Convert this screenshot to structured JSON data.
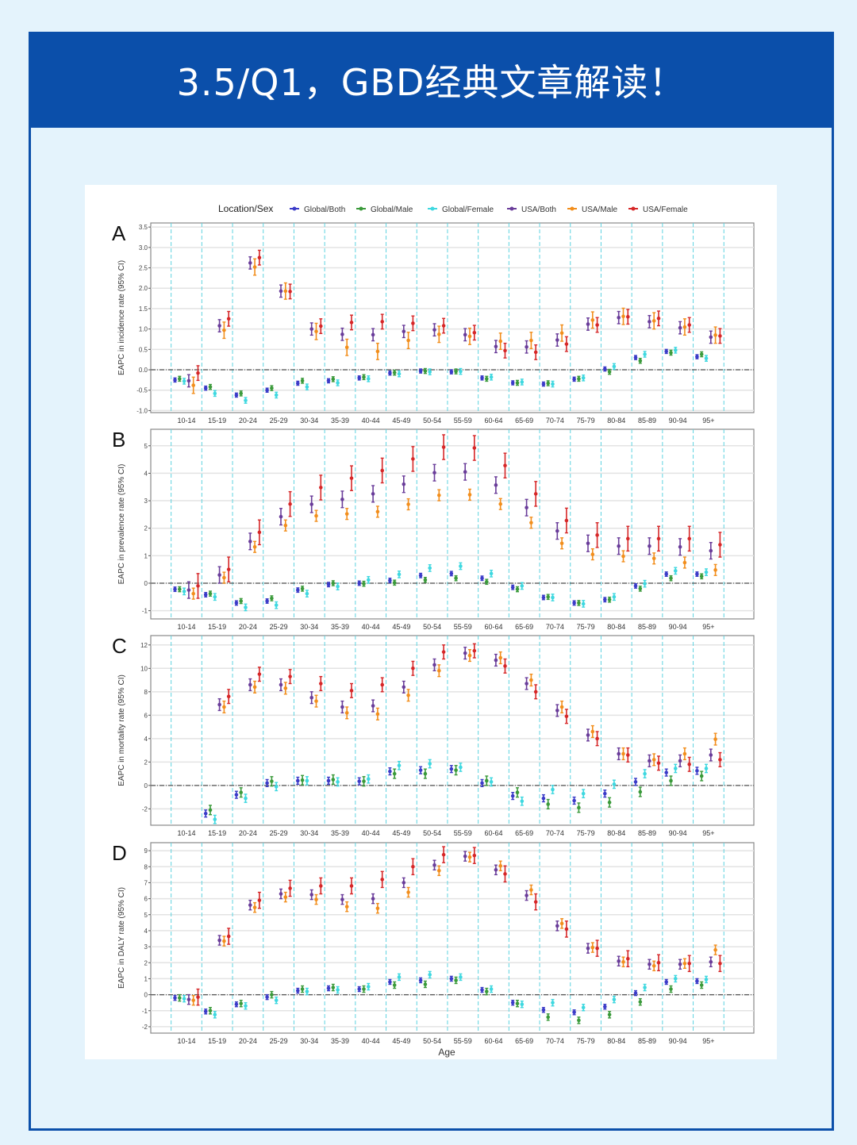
{
  "header": {
    "title": "3.5/Q1，GBD经典文章解读！"
  },
  "chart_data": {
    "type": "scatter",
    "subtype": "point-with-error-bars",
    "legend": {
      "title": "Location/Sex",
      "placement": "top"
    },
    "xlabel": "Age",
    "categories": [
      "10-14",
      "15-19",
      "20-24",
      "25-29",
      "30-34",
      "35-39",
      "40-44",
      "45-49",
      "50-54",
      "55-59",
      "60-64",
      "65-69",
      "70-74",
      "75-79",
      "80-84",
      "85-89",
      "90-94",
      "95+"
    ],
    "series_meta": [
      {
        "name": "Global/Both",
        "color": "#3b3bc8"
      },
      {
        "name": "Global/Male",
        "color": "#3a9a3a"
      },
      {
        "name": "Global/Female",
        "color": "#3fd8e0"
      },
      {
        "name": "USA/Both",
        "color": "#6a3d9a"
      },
      {
        "name": "USA/Male",
        "color": "#f28e1c"
      },
      {
        "name": "USA/Female",
        "color": "#d62728"
      }
    ],
    "panels": [
      {
        "letter": "A",
        "ylabel": "EAPC in incidence rate (95% CI)",
        "ylim": [
          -1.05,
          3.6
        ],
        "yticks": [
          "-1.0",
          "-0.5",
          "0.0",
          "0.5",
          "1.0",
          "1.5",
          "2.0",
          "2.5",
          "3.0",
          "3.5"
        ],
        "series": [
          {
            "name": "Global/Both",
            "ci_halfwidth": 0.05,
            "values": [
              -0.25,
              -0.45,
              -0.62,
              -0.5,
              -0.33,
              -0.27,
              -0.2,
              -0.08,
              -0.03,
              -0.05,
              -0.2,
              -0.32,
              -0.35,
              -0.23,
              0.02,
              0.3,
              0.45,
              0.32
            ]
          },
          {
            "name": "Global/Male",
            "ci_halfwidth": 0.06,
            "values": [
              -0.22,
              -0.42,
              -0.58,
              -0.45,
              -0.27,
              -0.23,
              -0.18,
              -0.07,
              -0.03,
              -0.04,
              -0.22,
              -0.32,
              -0.33,
              -0.22,
              -0.05,
              0.22,
              0.42,
              0.38
            ]
          },
          {
            "name": "Global/Female",
            "ci_halfwidth": 0.07,
            "values": [
              -0.28,
              -0.58,
              -0.75,
              -0.62,
              -0.42,
              -0.32,
              -0.22,
              -0.1,
              -0.05,
              -0.04,
              -0.18,
              -0.3,
              -0.35,
              -0.2,
              0.08,
              0.38,
              0.48,
              0.28
            ]
          },
          {
            "name": "USA/Both",
            "ci_halfwidth": 0.15,
            "values": [
              -0.27,
              1.08,
              2.62,
              1.93,
              1.0,
              0.87,
              0.86,
              0.94,
              0.98,
              0.86,
              0.57,
              0.56,
              0.73,
              1.12,
              1.28,
              1.18,
              1.03,
              0.8
            ]
          },
          {
            "name": "USA/Male",
            "ci_halfwidth": 0.2,
            "values": [
              -0.38,
              0.97,
              2.52,
              1.93,
              0.94,
              0.55,
              0.45,
              0.72,
              0.87,
              0.82,
              0.7,
              0.72,
              0.9,
              1.22,
              1.31,
              1.2,
              1.05,
              0.85
            ]
          },
          {
            "name": "USA/Female",
            "ci_halfwidth": 0.18,
            "values": [
              -0.08,
              1.25,
              2.75,
              1.92,
              1.07,
              1.16,
              1.18,
              1.14,
              1.08,
              0.91,
              0.47,
              0.43,
              0.63,
              1.1,
              1.3,
              1.26,
              1.1,
              0.83
            ]
          }
        ]
      },
      {
        "letter": "B",
        "ylabel": "EAPC in prevalence rate (95% CI)",
        "ylim": [
          -1.3,
          5.6
        ],
        "yticks": [
          "-1",
          "0",
          "1",
          "2",
          "3",
          "4",
          "5"
        ],
        "series": [
          {
            "name": "Global/Both",
            "ci_halfwidth": 0.08,
            "values": [
              -0.22,
              -0.42,
              -0.72,
              -0.65,
              -0.25,
              -0.05,
              0.0,
              0.1,
              0.28,
              0.35,
              0.18,
              -0.15,
              -0.52,
              -0.72,
              -0.6,
              -0.1,
              0.33,
              0.33
            ]
          },
          {
            "name": "Global/Male",
            "ci_halfwidth": 0.09,
            "values": [
              -0.22,
              -0.38,
              -0.65,
              -0.55,
              -0.2,
              0.0,
              -0.02,
              0.02,
              0.12,
              0.18,
              0.05,
              -0.22,
              -0.5,
              -0.72,
              -0.6,
              -0.2,
              0.18,
              0.25
            ]
          },
          {
            "name": "Global/Female",
            "ci_halfwidth": 0.12,
            "values": [
              -0.3,
              -0.5,
              -0.88,
              -0.8,
              -0.38,
              -0.12,
              0.12,
              0.32,
              0.55,
              0.62,
              0.35,
              -0.1,
              -0.52,
              -0.75,
              -0.5,
              -0.02,
              0.45,
              0.4
            ]
          },
          {
            "name": "USA/Both",
            "ci_halfwidth": 0.3,
            "values": [
              -0.25,
              0.3,
              1.52,
              2.42,
              2.87,
              3.05,
              3.25,
              3.6,
              4.02,
              4.05,
              3.57,
              2.75,
              1.9,
              1.45,
              1.35,
              1.35,
              1.32,
              1.18
            ]
          },
          {
            "name": "USA/Male",
            "ci_halfwidth": 0.2,
            "values": [
              -0.38,
              0.2,
              1.32,
              2.1,
              2.45,
              2.52,
              2.6,
              2.87,
              3.2,
              3.22,
              2.88,
              2.2,
              1.45,
              1.05,
              0.98,
              0.9,
              0.75,
              0.48
            ]
          },
          {
            "name": "USA/Female",
            "ci_halfwidth": 0.45,
            "values": [
              -0.1,
              0.5,
              1.85,
              2.88,
              3.48,
              3.82,
              4.1,
              4.52,
              4.95,
              4.92,
              4.28,
              3.25,
              2.28,
              1.75,
              1.62,
              1.62,
              1.62,
              1.4
            ]
          }
        ]
      },
      {
        "letter": "C",
        "ylabel": "EAPC in mortality rate (95% CI)",
        "ylim": [
          -3.4,
          12.8
        ],
        "yticks": [
          "-2",
          "0",
          "2",
          "4",
          "6",
          "8",
          "10",
          "12"
        ],
        "series": [
          {
            "name": "Global/Both",
            "ci_halfwidth": 0.3,
            "values": [
              null,
              -2.4,
              -0.8,
              0.2,
              0.4,
              0.4,
              0.35,
              1.2,
              1.3,
              1.4,
              0.2,
              -0.9,
              -1.1,
              -1.3,
              -0.7,
              0.3,
              1.1,
              1.25
            ]
          },
          {
            "name": "Global/Male",
            "ci_halfwidth": 0.4,
            "values": [
              null,
              -2.1,
              -0.6,
              0.35,
              0.45,
              0.5,
              0.35,
              1.0,
              1.0,
              1.3,
              0.4,
              -0.6,
              -1.6,
              -1.9,
              -1.45,
              -0.55,
              0.4,
              0.8
            ]
          },
          {
            "name": "Global/Female",
            "ci_halfwidth": 0.35,
            "values": [
              null,
              -2.9,
              -1.1,
              -0.1,
              0.4,
              0.3,
              0.55,
              1.7,
              1.85,
              1.55,
              0.3,
              -1.35,
              -0.35,
              -0.7,
              0.1,
              1.0,
              1.45,
              1.45
            ]
          },
          {
            "name": "USA/Both",
            "ci_halfwidth": 0.5,
            "values": [
              null,
              6.9,
              8.6,
              8.6,
              7.5,
              6.7,
              6.8,
              8.4,
              10.3,
              11.3,
              10.7,
              8.7,
              6.4,
              4.3,
              2.7,
              2.1,
              2.1,
              2.6
            ]
          },
          {
            "name": "USA/Male",
            "ci_halfwidth": 0.5,
            "values": [
              null,
              6.7,
              8.4,
              8.3,
              7.2,
              6.2,
              6.1,
              7.7,
              9.8,
              11.1,
              10.9,
              9.0,
              6.7,
              4.6,
              2.7,
              2.2,
              2.7,
              3.95
            ]
          },
          {
            "name": "USA/Female",
            "ci_halfwidth": 0.6,
            "values": [
              null,
              7.6,
              9.5,
              9.3,
              8.7,
              8.1,
              8.6,
              10.0,
              11.4,
              11.5,
              10.2,
              8.0,
              5.9,
              4.0,
              2.6,
              1.9,
              1.8,
              2.2
            ]
          }
        ]
      },
      {
        "letter": "D",
        "ylabel": "EAPC in DALY rate (95% CI)",
        "ylim": [
          -2.4,
          9.5
        ],
        "yticks": [
          "-2",
          "-1",
          "0",
          "1",
          "2",
          "3",
          "4",
          "5",
          "6",
          "7",
          "8",
          "9"
        ],
        "series": [
          {
            "name": "Global/Both",
            "ci_halfwidth": 0.15,
            "values": [
              -0.2,
              -1.05,
              -0.6,
              -0.15,
              0.25,
              0.4,
              0.35,
              0.8,
              0.9,
              1.0,
              0.3,
              -0.5,
              -0.95,
              -1.1,
              -0.75,
              0.1,
              0.8,
              0.85
            ]
          },
          {
            "name": "Global/Male",
            "ci_halfwidth": 0.2,
            "values": [
              -0.2,
              -1.0,
              -0.55,
              0.0,
              0.35,
              0.45,
              0.35,
              0.6,
              0.65,
              0.9,
              0.2,
              -0.55,
              -1.4,
              -1.6,
              -1.25,
              -0.45,
              0.35,
              0.6
            ]
          },
          {
            "name": "Global/Female",
            "ci_halfwidth": 0.2,
            "values": [
              -0.25,
              -1.25,
              -0.7,
              -0.35,
              0.2,
              0.3,
              0.5,
              1.1,
              1.25,
              1.1,
              0.35,
              -0.6,
              -0.5,
              -0.8,
              -0.3,
              0.45,
              1.0,
              0.95
            ]
          },
          {
            "name": "USA/Both",
            "ci_halfwidth": 0.3,
            "values": [
              -0.3,
              3.4,
              5.6,
              6.3,
              6.25,
              5.95,
              6.0,
              7.0,
              8.1,
              8.65,
              7.8,
              6.2,
              4.3,
              2.9,
              2.1,
              1.9,
              1.9,
              2.05
            ]
          },
          {
            "name": "USA/Male",
            "ci_halfwidth": 0.3,
            "values": [
              -0.35,
              3.35,
              5.45,
              6.1,
              5.95,
              5.5,
              5.4,
              6.4,
              7.75,
              8.6,
              8.05,
              6.55,
              4.45,
              2.95,
              2.05,
              1.8,
              1.95,
              2.8
            ]
          },
          {
            "name": "USA/Female",
            "ci_halfwidth": 0.5,
            "values": [
              -0.15,
              3.65,
              5.9,
              6.65,
              6.8,
              6.8,
              7.2,
              8.0,
              8.75,
              8.7,
              7.55,
              5.8,
              4.1,
              2.9,
              2.25,
              2.0,
              1.95,
              1.95
            ]
          }
        ]
      }
    ]
  }
}
